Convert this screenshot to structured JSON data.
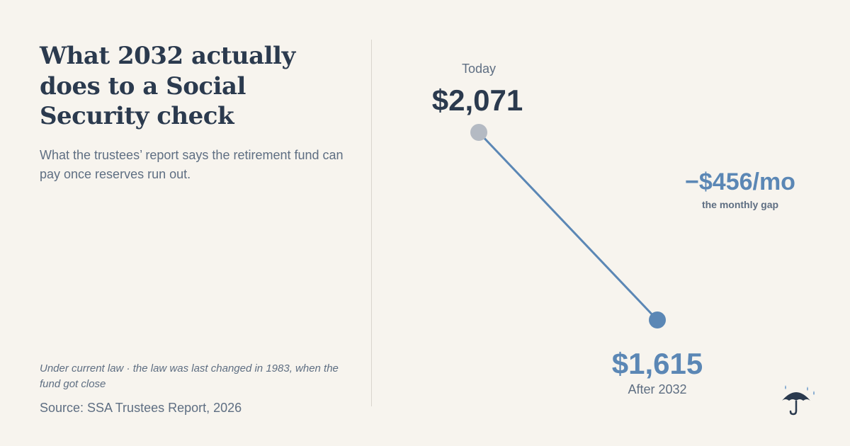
{
  "header": {
    "title": "What 2032 actually does to a Social Security check",
    "subtitle": "What the trustees’ report says the retirement fund can pay once reserves run out."
  },
  "footer": {
    "footnote": "Under current law · the law was last changed in 1983, when the fund got close",
    "source": "Source: SSA Trustees Report, 2026"
  },
  "chart_data": {
    "type": "line",
    "title": "",
    "categories": [
      "Today",
      "After 2032"
    ],
    "values": [
      2071,
      1615
    ],
    "value_labels": [
      "$2,071",
      "$1,615"
    ],
    "difference": -456,
    "difference_label": "−$456/mo",
    "difference_caption": "the monthly gap",
    "ylim": [
      1615,
      2071
    ],
    "grid": false,
    "legend": "none"
  },
  "colors": {
    "background": "#f7f4ee",
    "text_dark": "#2b3a4e",
    "text_muted": "#5e6e82",
    "accent_blue": "#5b87b5",
    "point_today": "#b4bac3"
  },
  "icons": {
    "brand": "umbrella-rain-icon"
  }
}
